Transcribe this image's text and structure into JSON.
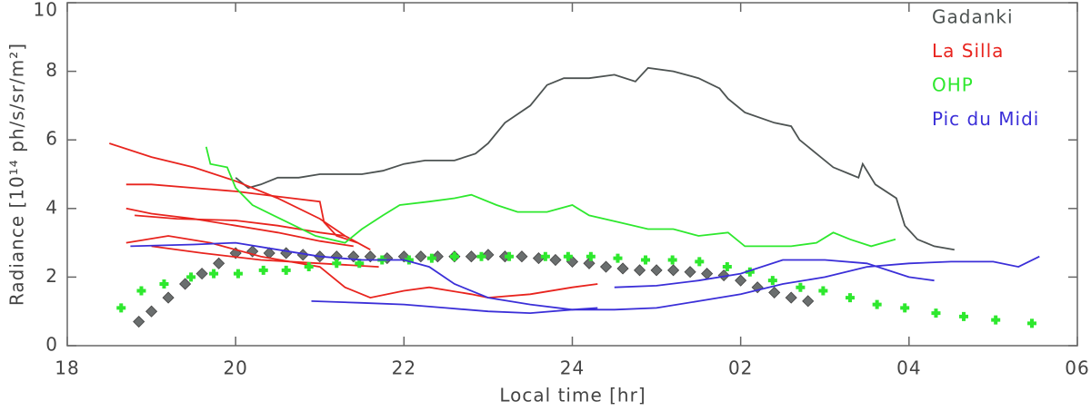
{
  "chart_data": {
    "type": "line",
    "xlabel": "Local time [hr]",
    "ylabel": "Radiance [10¹⁴ ph/s/sr/m²]",
    "xlim": [
      18,
      30
    ],
    "ylim": [
      0,
      10
    ],
    "xticks": [
      18,
      20,
      22,
      24,
      {
        "value": 26,
        "label": "02"
      },
      {
        "value": 28,
        "label": "04"
      },
      {
        "value": 30,
        "label": "06"
      }
    ],
    "yticks": [
      0,
      2,
      4,
      6,
      8,
      10
    ],
    "legend": "upper right",
    "series": [
      {
        "name": "Gadanki",
        "color": "#4d5352",
        "marker": "diamond",
        "lines": [
          {
            "x": [
              20.0,
              20.15,
              20.3,
              20.5,
              20.75,
              21.0,
              21.25,
              21.5,
              21.75,
              22.0,
              22.25,
              22.6,
              22.85,
              23.0,
              23.2,
              23.5,
              23.7,
              23.9,
              24.2,
              24.5,
              24.75,
              24.9,
              25.2,
              25.5,
              25.75,
              25.85,
              26.05,
              26.4,
              26.6,
              26.7,
              26.9,
              27.1,
              27.3,
              27.4,
              27.45,
              27.6,
              27.85,
              27.95,
              28.1,
              28.3,
              28.54
            ],
            "values": [
              4.9,
              4.6,
              4.7,
              4.9,
              4.9,
              5.0,
              5.0,
              5.0,
              5.1,
              5.3,
              5.4,
              5.4,
              5.6,
              5.9,
              6.5,
              7.0,
              7.6,
              7.8,
              7.8,
              7.9,
              7.7,
              8.1,
              8.0,
              7.8,
              7.5,
              7.2,
              6.8,
              6.5,
              6.4,
              6.0,
              5.6,
              5.2,
              5.0,
              4.9,
              5.3,
              4.7,
              4.3,
              3.5,
              3.1,
              2.9,
              2.8
            ]
          }
        ],
        "points": {
          "x": [
            18.85,
            19.0,
            19.2,
            19.4,
            19.6,
            19.8,
            20.0,
            20.2,
            20.4,
            20.6,
            20.8,
            21.0,
            21.2,
            21.4,
            21.6,
            21.8,
            22.0,
            22.2,
            22.4,
            22.6,
            22.8,
            23.0,
            23.2,
            23.4,
            23.6,
            23.8,
            24.0,
            24.2,
            24.4,
            24.6,
            24.8,
            25.0,
            25.2,
            25.4,
            25.6,
            25.8,
            26.0,
            26.2,
            26.4,
            26.6,
            26.8
          ],
          "values": [
            0.7,
            1.0,
            1.4,
            1.8,
            2.1,
            2.4,
            2.7,
            2.75,
            2.7,
            2.7,
            2.65,
            2.6,
            2.6,
            2.6,
            2.6,
            2.55,
            2.6,
            2.6,
            2.6,
            2.6,
            2.6,
            2.65,
            2.6,
            2.6,
            2.55,
            2.5,
            2.45,
            2.4,
            2.3,
            2.25,
            2.2,
            2.2,
            2.2,
            2.15,
            2.1,
            2.05,
            1.9,
            1.7,
            1.55,
            1.4,
            1.3
          ]
        }
      },
      {
        "name": "La Silla",
        "color": "#e8241e",
        "lines": [
          {
            "x": [
              18.5,
              19.0,
              19.5,
              20.0,
              20.5,
              21.0,
              21.3,
              21.6
            ],
            "values": [
              5.9,
              5.5,
              5.2,
              4.8,
              4.3,
              3.7,
              3.2,
              2.8
            ]
          },
          {
            "x": [
              18.7,
              19.0,
              19.5,
              20.0,
              20.5,
              21.0,
              21.05,
              21.2,
              21.45
            ],
            "values": [
              4.7,
              4.7,
              4.6,
              4.5,
              4.35,
              4.2,
              3.6,
              3.2,
              3.0
            ]
          },
          {
            "x": [
              18.7,
              19.0,
              19.5,
              20.0,
              20.5,
              21.0,
              21.4
            ],
            "values": [
              4.0,
              3.85,
              3.7,
              3.5,
              3.3,
              3.05,
              2.9
            ]
          },
          {
            "x": [
              18.8,
              19.3,
              20.0,
              20.5,
              21.0,
              21.3
            ],
            "values": [
              3.8,
              3.7,
              3.65,
              3.5,
              3.3,
              3.2
            ]
          },
          {
            "x": [
              18.7,
              19.2,
              19.7,
              20.3,
              21.0,
              21.3,
              21.6,
              22.0,
              22.3,
              22.8,
              23.0,
              23.5,
              24.0,
              24.3
            ],
            "values": [
              3.0,
              3.2,
              3.0,
              2.6,
              2.3,
              1.7,
              1.4,
              1.6,
              1.7,
              1.5,
              1.4,
              1.5,
              1.7,
              1.8
            ]
          },
          {
            "x": [
              19.0,
              19.6,
              20.3,
              21.0,
              21.7
            ],
            "values": [
              2.9,
              2.7,
              2.5,
              2.4,
              2.3
            ]
          }
        ]
      },
      {
        "name": "OHP",
        "color": "#2ee82e",
        "marker": "plus",
        "lines": [
          {
            "x": [
              19.65,
              19.7,
              19.9,
              20.0,
              20.2,
              20.45,
              20.95,
              21.3,
              21.5,
              21.75,
              21.95,
              22.3,
              22.6,
              22.8,
              23.1,
              23.35,
              23.7,
              24.0,
              24.2,
              24.55,
              24.9,
              25.2,
              25.5,
              25.85,
              26.05,
              26.4,
              26.6,
              26.9,
              27.1,
              27.3,
              27.55,
              27.84
            ],
            "values": [
              5.8,
              5.3,
              5.2,
              4.6,
              4.1,
              3.8,
              3.2,
              3.0,
              3.4,
              3.8,
              4.1,
              4.2,
              4.3,
              4.4,
              4.1,
              3.9,
              3.9,
              4.1,
              3.8,
              3.6,
              3.4,
              3.4,
              3.2,
              3.3,
              2.9,
              2.9,
              2.9,
              3.0,
              3.3,
              3.1,
              2.9,
              3.1
            ]
          }
        ],
        "points": {
          "x": [
            18.64,
            18.88,
            19.15,
            19.47,
            19.74,
            20.03,
            20.33,
            20.6,
            20.87,
            21.2,
            21.47,
            21.74,
            22.06,
            22.33,
            22.6,
            22.92,
            23.25,
            23.68,
            23.95,
            24.22,
            24.54,
            24.87,
            25.19,
            25.51,
            25.84,
            26.11,
            26.38,
            26.71,
            26.98,
            27.3,
            27.62,
            27.95,
            28.32,
            28.65,
            29.03,
            29.46
          ],
          "values": [
            1.1,
            1.6,
            1.8,
            2.0,
            2.1,
            2.1,
            2.2,
            2.2,
            2.3,
            2.4,
            2.4,
            2.5,
            2.5,
            2.55,
            2.6,
            2.6,
            2.6,
            2.6,
            2.6,
            2.6,
            2.55,
            2.5,
            2.5,
            2.45,
            2.3,
            2.15,
            1.9,
            1.7,
            1.6,
            1.4,
            1.2,
            1.1,
            0.95,
            0.85,
            0.75,
            0.65
          ]
        }
      },
      {
        "name": "Pic du Midi",
        "color": "#3b2fd8",
        "lines": [
          {
            "x": [
              18.75,
              19.5,
              20.0,
              20.5,
              21.0,
              21.5,
              22.0,
              22.3,
              22.6,
              23.0,
              23.5,
              24.0,
              24.5,
              25.0,
              25.5,
              26.0,
              26.5,
              27.0,
              27.5,
              28.0,
              28.5,
              29.0,
              29.3,
              29.55
            ],
            "values": [
              2.9,
              2.95,
              3.0,
              2.8,
              2.6,
              2.5,
              2.5,
              2.3,
              1.8,
              1.4,
              1.2,
              1.05,
              1.05,
              1.1,
              1.3,
              1.5,
              1.8,
              2.0,
              2.3,
              2.4,
              2.45,
              2.45,
              2.3,
              2.6
            ]
          },
          {
            "x": [
              20.9,
              21.5,
              22.0,
              22.5,
              23.0,
              23.5,
              24.0,
              24.3
            ],
            "values": [
              1.3,
              1.25,
              1.2,
              1.1,
              1.0,
              0.95,
              1.05,
              1.1
            ]
          },
          {
            "x": [
              24.5,
              25.0,
              25.5,
              26.0,
              26.5,
              27.0,
              27.5,
              28.0,
              28.3
            ],
            "values": [
              1.7,
              1.75,
              1.9,
              2.1,
              2.5,
              2.5,
              2.4,
              2.0,
              1.9
            ]
          }
        ]
      }
    ]
  }
}
